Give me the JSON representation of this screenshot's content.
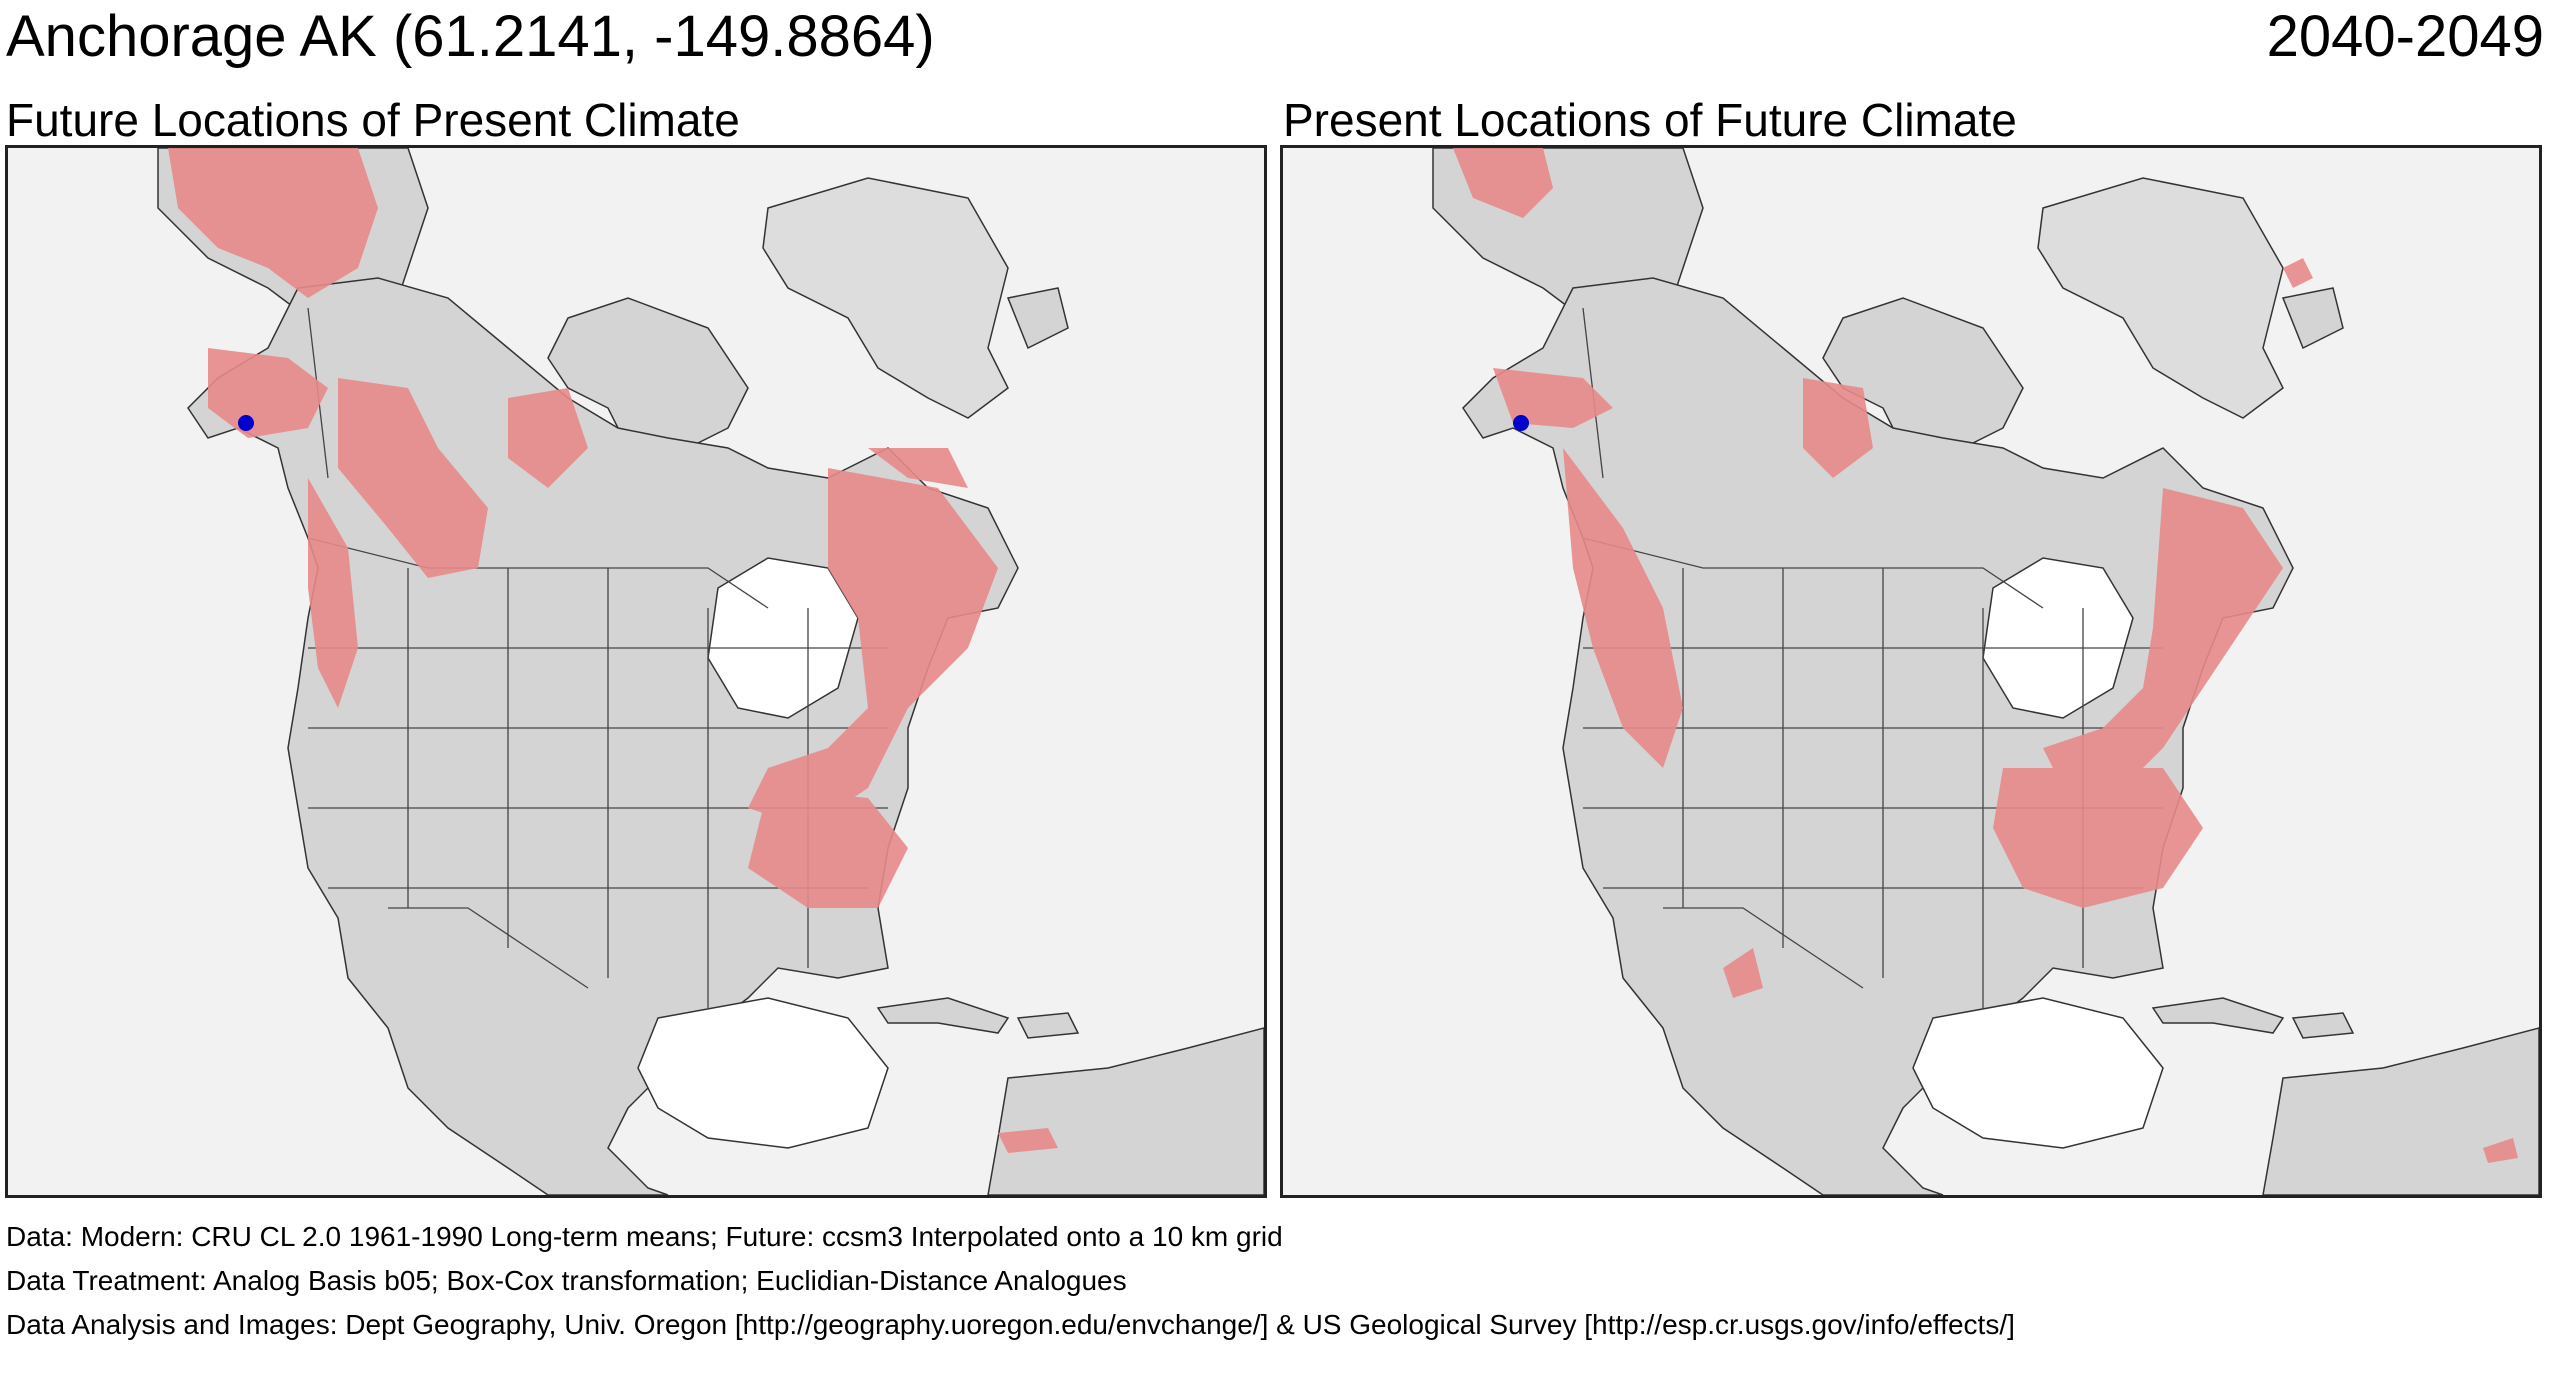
{
  "header": {
    "location_title": "Anchorage AK  (61.2141, -149.8864)",
    "period": "2040-2049"
  },
  "panels": [
    {
      "title": "Future Locations of Present Climate",
      "has_location_marker": true
    },
    {
      "title": "Present Locations of Future Climate",
      "has_location_marker": true
    }
  ],
  "location": {
    "lat": 61.2141,
    "lon": -149.8864,
    "marker_color": "#0000cc"
  },
  "colors": {
    "ocean": "#f2f2f2",
    "land": "#d4d4d4",
    "land_shadow": "#b8b8b8",
    "analog_fill": "#e88a8a",
    "analog_dark": "#c0404a",
    "boundary": "#333333"
  },
  "footer": {
    "line1": "Data:  Modern: CRU CL 2.0 1961-1990 Long-term means; Future: ccsm3 Interpolated onto a 10 km grid",
    "line2": "Data Treatment:  Analog Basis b05; Box-Cox transformation; Euclidian-Distance Analogues",
    "line3": "Data Analysis and Images:  Dept Geography, Univ. Oregon [http://geography.uoregon.edu/envchange/] & US Geological Survey [http://esp.cr.usgs.gov/info/effects/]"
  }
}
